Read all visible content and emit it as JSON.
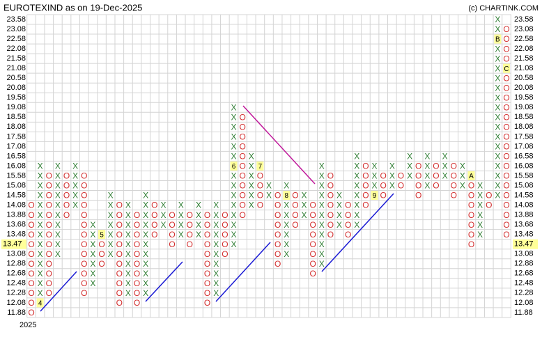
{
  "chart_data": {
    "type": "pnf",
    "title": "EUROTEXIND as on 19-Dec-2025",
    "credit": "(c) CHARTINK.COM",
    "year": "2025",
    "last_price": 13.47,
    "x_color": "#2e7d32",
    "o_color": "#d32f2f",
    "grid": true,
    "levels": [
      23.58,
      23.08,
      22.58,
      22.08,
      21.58,
      21.08,
      20.58,
      20.08,
      19.58,
      19.08,
      18.58,
      18.08,
      17.58,
      17.08,
      16.58,
      16.08,
      15.58,
      15.08,
      14.58,
      14.08,
      13.88,
      13.68,
      13.48,
      13.28,
      13.08,
      12.88,
      12.68,
      12.48,
      12.28,
      12.08,
      11.88
    ],
    "columns": [
      {
        "type": "O",
        "low": 11.88,
        "high": 14.08
      },
      {
        "type": "X",
        "low": 12.08,
        "high": 16.08,
        "marks": [
          {
            "level": 12.08,
            "label": "4"
          }
        ]
      },
      {
        "type": "O",
        "low": 12.28,
        "high": 15.58
      },
      {
        "type": "X",
        "low": 13.08,
        "high": 16.08
      },
      {
        "type": "O",
        "low": 13.88,
        "high": 15.58
      },
      {
        "type": "X",
        "low": 14.08,
        "high": 16.08
      },
      {
        "type": "O",
        "low": 12.28,
        "high": 15.58
      },
      {
        "type": "X",
        "low": 12.48,
        "high": 13.68
      },
      {
        "type": "O",
        "low": 12.88,
        "high": 13.48,
        "marks": [
          {
            "level": 13.48,
            "label": "5"
          }
        ]
      },
      {
        "type": "X",
        "low": 13.08,
        "high": 14.58
      },
      {
        "type": "O",
        "low": 12.08,
        "high": 14.08
      },
      {
        "type": "X",
        "low": 12.28,
        "high": 14.08
      },
      {
        "type": "O",
        "low": 12.08,
        "high": 13.88
      },
      {
        "type": "X",
        "low": 12.28,
        "high": 14.58
      },
      {
        "type": "O",
        "low": 13.48,
        "high": 14.08
      },
      {
        "type": "X",
        "low": 13.68,
        "high": 14.08
      },
      {
        "type": "O",
        "low": 13.28,
        "high": 13.88
      },
      {
        "type": "X",
        "low": 13.48,
        "high": 14.08
      },
      {
        "type": "O",
        "low": 13.28,
        "high": 13.88
      },
      {
        "type": "X",
        "low": 13.48,
        "high": 14.08
      },
      {
        "type": "O",
        "low": 12.08,
        "high": 13.88
      },
      {
        "type": "X",
        "low": 12.28,
        "high": 14.08
      },
      {
        "type": "O",
        "low": 13.08,
        "high": 13.88
      },
      {
        "type": "X",
        "low": 13.28,
        "high": 19.08,
        "marks": [
          {
            "level": 16.08,
            "label": "6"
          }
        ]
      },
      {
        "type": "O",
        "low": 13.88,
        "high": 18.58
      },
      {
        "type": "X",
        "low": 14.08,
        "high": 16.58
      },
      {
        "type": "O",
        "low": 14.08,
        "high": 16.08,
        "marks": [
          {
            "level": 16.08,
            "label": "7"
          }
        ]
      },
      {
        "type": "X",
        "low": 14.58,
        "high": 15.08
      },
      {
        "type": "O",
        "low": 12.88,
        "high": 14.58
      },
      {
        "type": "X",
        "low": 13.08,
        "high": 15.08,
        "marks": [
          {
            "level": 14.58,
            "label": "8"
          }
        ]
      },
      {
        "type": "O",
        "low": 13.68,
        "high": 14.58
      },
      {
        "type": "X",
        "low": 13.88,
        "high": 14.58
      },
      {
        "type": "O",
        "low": 12.68,
        "high": 14.08
      },
      {
        "type": "X",
        "low": 12.88,
        "high": 16.08
      },
      {
        "type": "O",
        "low": 13.48,
        "high": 15.58
      },
      {
        "type": "X",
        "low": 13.68,
        "high": 14.58
      },
      {
        "type": "O",
        "low": 13.48,
        "high": 14.08
      },
      {
        "type": "X",
        "low": 13.68,
        "high": 16.58
      },
      {
        "type": "O",
        "low": 14.08,
        "high": 16.08
      },
      {
        "type": "X",
        "low": 14.58,
        "high": 16.08,
        "marks": [
          {
            "level": 14.58,
            "label": "9"
          }
        ]
      },
      {
        "type": "O",
        "low": 14.58,
        "high": 15.58
      },
      {
        "type": "X",
        "low": 15.08,
        "high": 16.08
      },
      {
        "type": "O",
        "low": 15.08,
        "high": 15.58
      },
      {
        "type": "X",
        "low": 15.58,
        "high": 16.58
      },
      {
        "type": "O",
        "low": 14.58,
        "high": 16.08
      },
      {
        "type": "X",
        "low": 15.08,
        "high": 16.58
      },
      {
        "type": "O",
        "low": 15.08,
        "high": 16.08
      },
      {
        "type": "X",
        "low": 15.58,
        "high": 16.58
      },
      {
        "type": "O",
        "low": 14.58,
        "high": 16.08
      },
      {
        "type": "X",
        "low": 15.08,
        "high": 16.08
      },
      {
        "type": "O",
        "low": 13.28,
        "high": 15.58,
        "marks": [
          {
            "level": 15.58,
            "label": "A"
          }
        ]
      },
      {
        "type": "X",
        "low": 13.48,
        "high": 15.08
      },
      {
        "type": "O",
        "low": 14.08,
        "high": 14.58
      },
      {
        "type": "X",
        "low": 14.58,
        "high": 23.58,
        "marks": [
          {
            "level": 22.58,
            "label": "B"
          }
        ]
      },
      {
        "type": "O",
        "low": 13.48,
        "high": 23.08,
        "marks": [
          {
            "level": 21.08,
            "label": "C"
          }
        ]
      }
    ]
  }
}
